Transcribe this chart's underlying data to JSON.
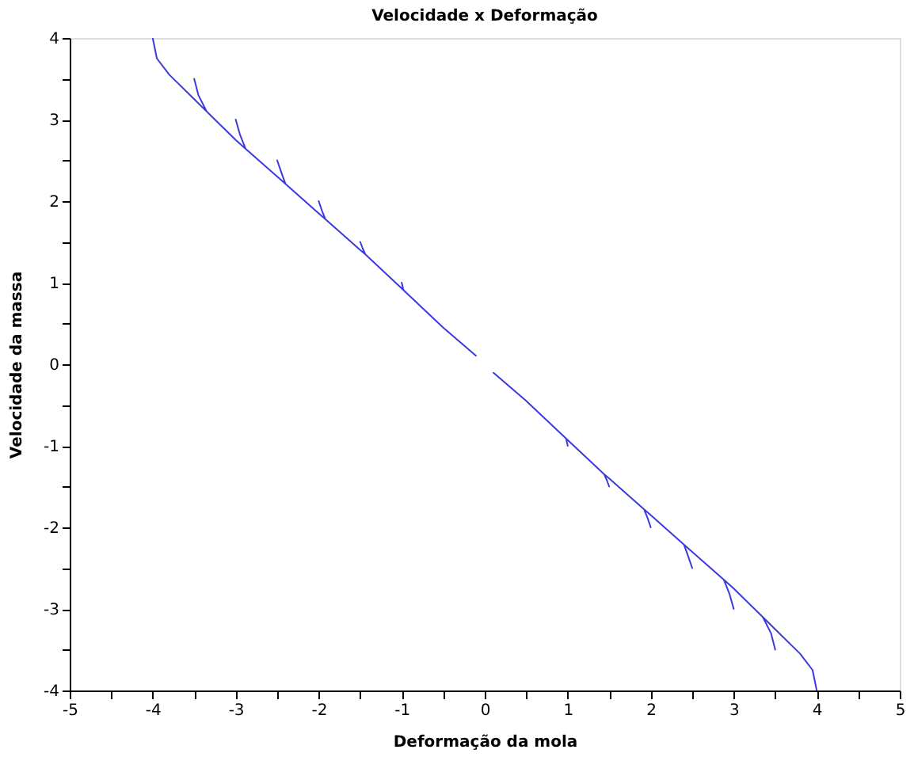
{
  "chart_data": {
    "type": "line",
    "title": "Velocidade x Deformação",
    "xlabel": "Deformação da mola",
    "ylabel": "Velocidade da massa",
    "xlim": [
      -5,
      5
    ],
    "ylim": [
      -4,
      4
    ],
    "xticks": [
      -5,
      {
        "value": -4.5,
        "label": null
      },
      -4,
      {
        "value": -3.5,
        "label": null
      },
      -3,
      {
        "value": -2.5,
        "label": null
      },
      -2,
      {
        "value": -1.5,
        "label": null
      },
      -1,
      {
        "value": -0.5,
        "label": null
      },
      0,
      {
        "value": 0.5,
        "label": null
      },
      1,
      {
        "value": 1.5,
        "label": null
      },
      2,
      {
        "value": 2.5,
        "label": null
      },
      3,
      {
        "value": 3.5,
        "label": null
      },
      4,
      {
        "value": 4.5,
        "label": null
      },
      5
    ],
    "yticks": [
      -4,
      {
        "value": -3.5,
        "label": null
      },
      -3,
      {
        "value": -2.5,
        "label": null
      },
      -2,
      {
        "value": -1.5,
        "label": null
      },
      -1,
      {
        "value": -0.5,
        "label": null
      },
      0,
      {
        "value": 0.5,
        "label": null
      },
      1,
      {
        "value": 1.5,
        "label": null
      },
      2,
      {
        "value": 2.5,
        "label": null
      },
      3,
      {
        "value": 3.5,
        "label": null
      },
      4
    ],
    "grid": false,
    "legend": false,
    "line_style": "solid",
    "series": [
      {
        "color": "#3a3ae0",
        "x": [
          -4,
          -3.95,
          -3.8,
          -3.5,
          -3.35,
          -3.45,
          -3.5,
          -3.45,
          -3.35,
          -3,
          -2.88,
          -2.95,
          -3,
          -2.95,
          -2.88,
          -2.5,
          -2.4,
          -2.45,
          -2.5,
          -2.45,
          -2.4,
          -2,
          -1.92,
          -1.96,
          -2,
          -1.96,
          -1.92,
          -1.5,
          -1.44,
          -1.47,
          -1.5,
          -1.47,
          -1.44,
          -1,
          -0.98,
          -1,
          -0.98,
          -0.5,
          -0.1
        ],
        "values": [
          4,
          3.75,
          3.55,
          3.25,
          3.1,
          3.3,
          3.5,
          3.3,
          3.1,
          2.75,
          2.64,
          2.82,
          3,
          2.82,
          2.64,
          2.3,
          2.21,
          2.35,
          2.5,
          2.35,
          2.21,
          1.85,
          1.78,
          1.88,
          2,
          1.88,
          1.78,
          1.4,
          1.35,
          1.42,
          1.5,
          1.42,
          1.35,
          0.93,
          0.91,
          1,
          0.91,
          0.45,
          0.1
        ]
      },
      {
        "color": "#3a3ae0",
        "x": [
          0.1,
          0.5,
          0.98,
          1,
          0.98,
          1,
          1.44,
          1.47,
          1.5,
          1.47,
          1.44,
          1.5,
          1.92,
          1.96,
          2,
          1.96,
          1.92,
          2,
          2.4,
          2.45,
          2.5,
          2.45,
          2.4,
          2.5,
          2.88,
          2.95,
          3,
          2.95,
          2.88,
          3,
          3.35,
          3.45,
          3.5,
          3.45,
          3.35,
          3.5,
          3.8,
          3.95,
          4
        ],
        "values": [
          -0.1,
          -0.45,
          -0.91,
          -1,
          -0.91,
          -0.93,
          -1.35,
          -1.42,
          -1.5,
          -1.42,
          -1.35,
          -1.4,
          -1.78,
          -1.88,
          -2,
          -1.88,
          -1.78,
          -1.85,
          -2.21,
          -2.35,
          -2.5,
          -2.35,
          -2.21,
          -2.3,
          -2.64,
          -2.82,
          -3,
          -2.82,
          -2.64,
          -2.75,
          -3.1,
          -3.3,
          -3.5,
          -3.3,
          -3.1,
          -3.25,
          -3.55,
          -3.75,
          -4
        ]
      }
    ]
  }
}
